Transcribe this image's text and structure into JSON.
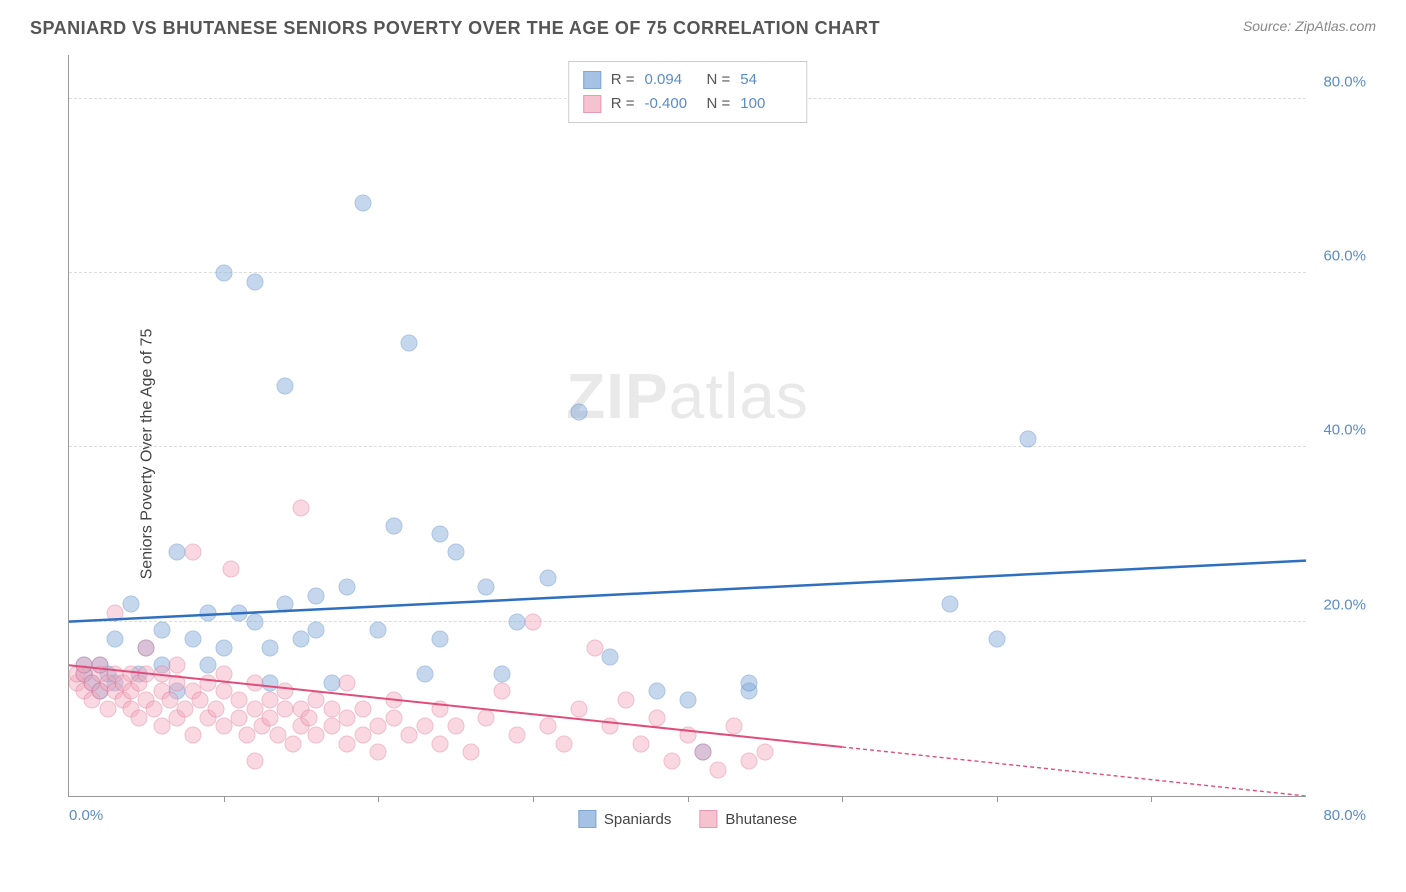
{
  "title": "SPANIARD VS BHUTANESE SENIORS POVERTY OVER THE AGE OF 75 CORRELATION CHART",
  "source": "Source: ZipAtlas.com",
  "ylabel": "Seniors Poverty Over the Age of 75",
  "watermark_bold": "ZIP",
  "watermark_light": "atlas",
  "chart": {
    "type": "scatter",
    "xlim": [
      0,
      80
    ],
    "ylim": [
      0,
      85
    ],
    "y_ticks": [
      20,
      40,
      60,
      80
    ],
    "y_tick_labels": [
      "20.0%",
      "40.0%",
      "60.0%",
      "80.0%"
    ],
    "x_min_label": "0.0%",
    "x_max_label": "80.0%",
    "x_tick_positions": [
      10,
      20,
      30,
      40,
      50,
      60,
      70
    ],
    "background_color": "#ffffff",
    "grid_color": "#dddddd",
    "axis_color": "#999999",
    "marker_radius": 8.5,
    "marker_border_width": 1.2,
    "marker_fill_opacity": 0.45,
    "series": [
      {
        "key": "spaniards",
        "label": "Spaniards",
        "color_fill": "#7fa8d9",
        "color_border": "#4a7fc1",
        "r": "0.094",
        "n": "54",
        "trend": {
          "x1": 0,
          "y1": 20,
          "x2": 80,
          "y2": 27,
          "color": "#2f6fc0",
          "width": 2.5,
          "dash_after_x": null
        },
        "points": [
          [
            1,
            14
          ],
          [
            1,
            15
          ],
          [
            1.5,
            13
          ],
          [
            2,
            15
          ],
          [
            2,
            12
          ],
          [
            2.5,
            14
          ],
          [
            3,
            18
          ],
          [
            3,
            13
          ],
          [
            4,
            22
          ],
          [
            4.5,
            14
          ],
          [
            5,
            17
          ],
          [
            6,
            15
          ],
          [
            6,
            19
          ],
          [
            7,
            12
          ],
          [
            7,
            28
          ],
          [
            8,
            18
          ],
          [
            9,
            15
          ],
          [
            9,
            21
          ],
          [
            10,
            60
          ],
          [
            10,
            17
          ],
          [
            11,
            21
          ],
          [
            12,
            20
          ],
          [
            12,
            59
          ],
          [
            13,
            17
          ],
          [
            13,
            13
          ],
          [
            14,
            22
          ],
          [
            14,
            47
          ],
          [
            15,
            18
          ],
          [
            16,
            19
          ],
          [
            16,
            23
          ],
          [
            17,
            13
          ],
          [
            18,
            24
          ],
          [
            19,
            68
          ],
          [
            20,
            19
          ],
          [
            21,
            31
          ],
          [
            22,
            52
          ],
          [
            23,
            14
          ],
          [
            24,
            30
          ],
          [
            24,
            18
          ],
          [
            25,
            28
          ],
          [
            27,
            24
          ],
          [
            28,
            14
          ],
          [
            29,
            20
          ],
          [
            31,
            25
          ],
          [
            33,
            44
          ],
          [
            35,
            16
          ],
          [
            38,
            12
          ],
          [
            40,
            11
          ],
          [
            41,
            5
          ],
          [
            44,
            12
          ],
          [
            44,
            13
          ],
          [
            57,
            22
          ],
          [
            60,
            18
          ],
          [
            62,
            41
          ]
        ]
      },
      {
        "key": "bhutanese",
        "label": "Bhutanese",
        "color_fill": "#f2a9bd",
        "color_border": "#e06f92",
        "r": "-0.400",
        "n": "100",
        "trend": {
          "x1": 0,
          "y1": 15,
          "x2": 80,
          "y2": 0,
          "color": "#e14d7b",
          "width": 2,
          "dash_after_x": 50
        },
        "points": [
          [
            0.5,
            13
          ],
          [
            0.5,
            14
          ],
          [
            1,
            12
          ],
          [
            1,
            14
          ],
          [
            1,
            15
          ],
          [
            1.5,
            13
          ],
          [
            1.5,
            11
          ],
          [
            2,
            14
          ],
          [
            2,
            12
          ],
          [
            2,
            15
          ],
          [
            2.5,
            13
          ],
          [
            2.5,
            10
          ],
          [
            3,
            12
          ],
          [
            3,
            14
          ],
          [
            3,
            21
          ],
          [
            3.5,
            11
          ],
          [
            3.5,
            13
          ],
          [
            4,
            14
          ],
          [
            4,
            10
          ],
          [
            4,
            12
          ],
          [
            4.5,
            13
          ],
          [
            4.5,
            9
          ],
          [
            5,
            11
          ],
          [
            5,
            14
          ],
          [
            5,
            17
          ],
          [
            5.5,
            10
          ],
          [
            6,
            12
          ],
          [
            6,
            8
          ],
          [
            6,
            14
          ],
          [
            6.5,
            11
          ],
          [
            7,
            13
          ],
          [
            7,
            9
          ],
          [
            7,
            15
          ],
          [
            7.5,
            10
          ],
          [
            8,
            12
          ],
          [
            8,
            7
          ],
          [
            8,
            28
          ],
          [
            8.5,
            11
          ],
          [
            9,
            9
          ],
          [
            9,
            13
          ],
          [
            9.5,
            10
          ],
          [
            10,
            8
          ],
          [
            10,
            12
          ],
          [
            10,
            14
          ],
          [
            10.5,
            26
          ],
          [
            11,
            9
          ],
          [
            11,
            11
          ],
          [
            11.5,
            7
          ],
          [
            12,
            10
          ],
          [
            12,
            13
          ],
          [
            12,
            4
          ],
          [
            12.5,
            8
          ],
          [
            13,
            11
          ],
          [
            13,
            9
          ],
          [
            13.5,
            7
          ],
          [
            14,
            10
          ],
          [
            14,
            12
          ],
          [
            14.5,
            6
          ],
          [
            15,
            8
          ],
          [
            15,
            33
          ],
          [
            15,
            10
          ],
          [
            15.5,
            9
          ],
          [
            16,
            7
          ],
          [
            16,
            11
          ],
          [
            17,
            8
          ],
          [
            17,
            10
          ],
          [
            18,
            6
          ],
          [
            18,
            9
          ],
          [
            18,
            13
          ],
          [
            19,
            7
          ],
          [
            19,
            10
          ],
          [
            20,
            8
          ],
          [
            20,
            5
          ],
          [
            21,
            9
          ],
          [
            21,
            11
          ],
          [
            22,
            7
          ],
          [
            23,
            8
          ],
          [
            24,
            10
          ],
          [
            24,
            6
          ],
          [
            25,
            8
          ],
          [
            26,
            5
          ],
          [
            27,
            9
          ],
          [
            28,
            12
          ],
          [
            29,
            7
          ],
          [
            30,
            20
          ],
          [
            31,
            8
          ],
          [
            32,
            6
          ],
          [
            33,
            10
          ],
          [
            34,
            17
          ],
          [
            35,
            8
          ],
          [
            36,
            11
          ],
          [
            37,
            6
          ],
          [
            38,
            9
          ],
          [
            39,
            4
          ],
          [
            40,
            7
          ],
          [
            41,
            5
          ],
          [
            42,
            3
          ],
          [
            43,
            8
          ],
          [
            44,
            4
          ],
          [
            45,
            5
          ]
        ]
      }
    ],
    "legend_top_labels": {
      "r": "R =",
      "n": "N ="
    }
  }
}
